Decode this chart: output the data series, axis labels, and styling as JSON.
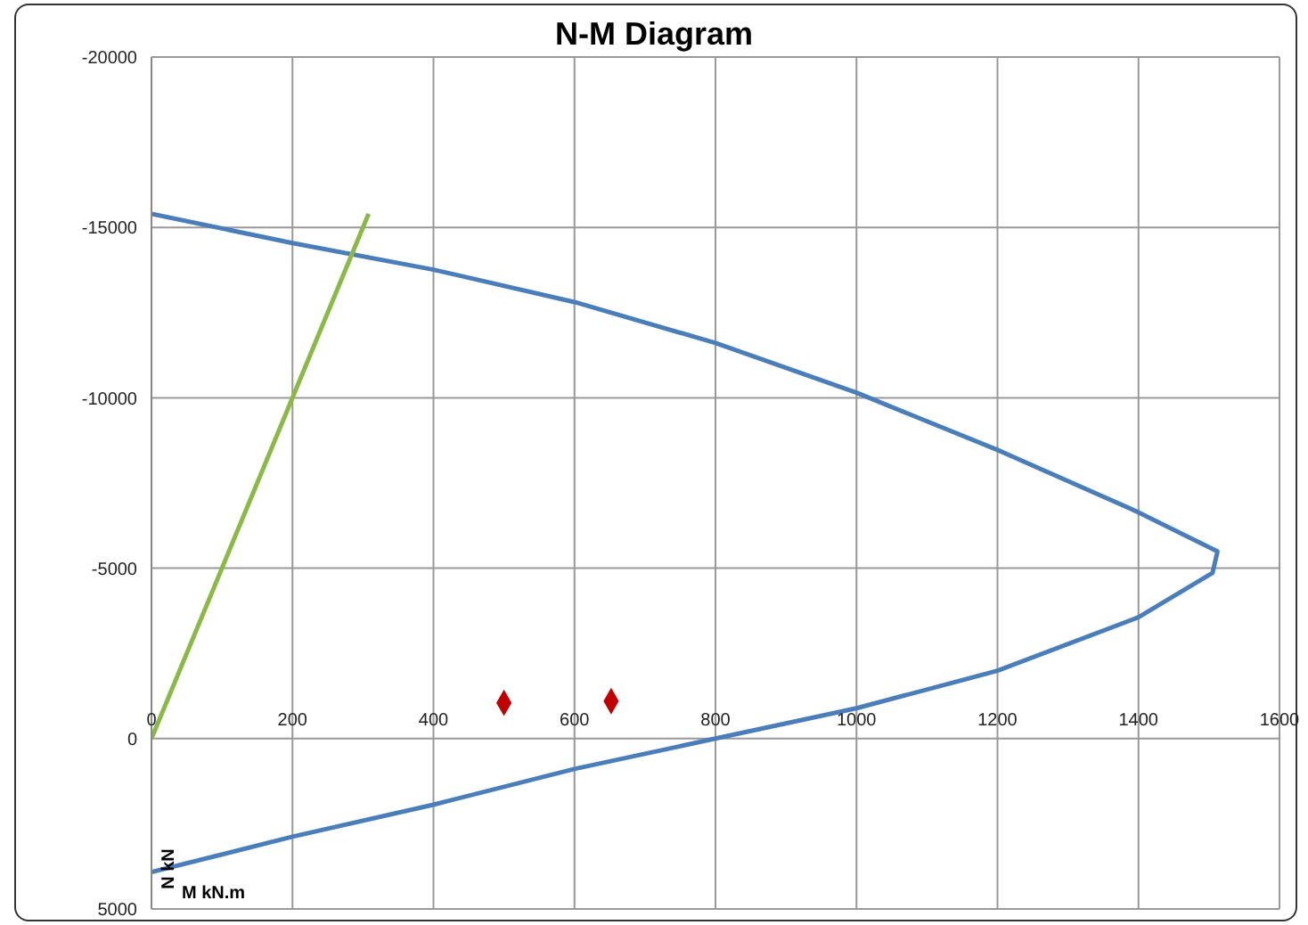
{
  "chart_data": {
    "type": "line",
    "title": "N-M Diagram",
    "xlabel": "M kN.m",
    "ylabel": "N kN",
    "xlim": [
      0,
      1600
    ],
    "xticks": [
      0,
      200,
      400,
      600,
      800,
      1000,
      1200,
      1400,
      1600
    ],
    "ylim": [
      5000,
      -20000
    ],
    "yticks": [
      5000,
      0,
      -5000,
      -10000,
      -15000,
      -20000
    ],
    "grid": true,
    "legend": false,
    "marker": "none",
    "line_style": "solid",
    "series": [
      {
        "color": "#4a7ebb",
        "x": [
          0,
          200,
          400,
          600,
          800,
          1000,
          1200,
          1400,
          1512,
          1505,
          1400,
          1200,
          1000,
          800,
          600,
          400,
          200,
          0
        ],
        "values": [
          -15400,
          -14540,
          -13760,
          -12810,
          -11610,
          -10150,
          -8470,
          -6640,
          -5490,
          -4860,
          -3560,
          -1990,
          -890,
          0,
          890,
          1940,
          2880,
          3920
        ]
      },
      {
        "color": "#8cb848",
        "x": [
          0,
          308
        ],
        "values": [
          0,
          -15400
        ]
      },
      {
        "type": "scatter",
        "color": "#c00000",
        "marker": "diamond",
        "x": [
          500,
          652
        ],
        "values": [
          -1050,
          -1100
        ]
      }
    ]
  }
}
